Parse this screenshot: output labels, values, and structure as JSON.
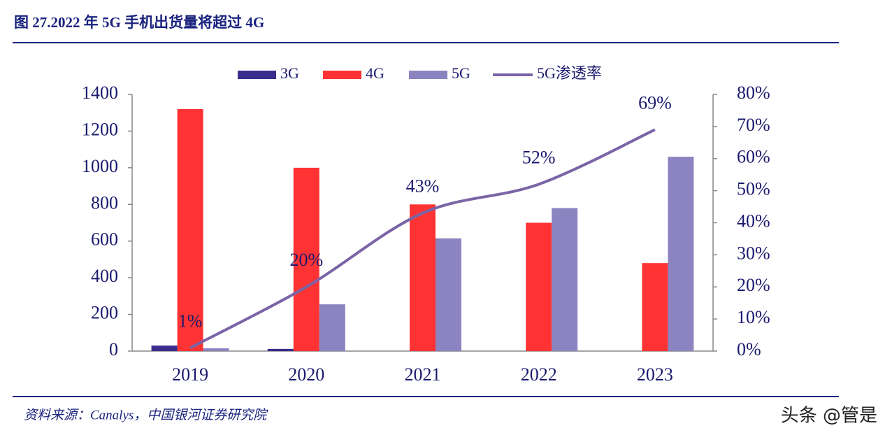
{
  "chart_data": {
    "type": "bar_line",
    "title": "图 27.2022 年 5G 手机出货量将超过 4G",
    "source": "资料来源：Canalys，中国银河证券研究院",
    "watermark": "头条 @管是",
    "categories": [
      "2019",
      "2020",
      "2021",
      "2022",
      "2023"
    ],
    "series": [
      {
        "name": "3G",
        "color": "#3a2d8c",
        "values": [
          30,
          12,
          0,
          0,
          0
        ]
      },
      {
        "name": "4G",
        "color": "#ff3333",
        "values": [
          1320,
          1000,
          800,
          700,
          480
        ]
      },
      {
        "name": "5G",
        "color": "#8b84c0",
        "values": [
          15,
          255,
          615,
          780,
          1060
        ]
      },
      {
        "name": "5G渗透率",
        "color": "#7b64a6",
        "axis": "y2",
        "values": [
          1,
          20,
          43,
          52,
          69
        ],
        "value_labels": [
          "1%",
          "20%",
          "43%",
          "52%",
          "69%"
        ]
      }
    ],
    "ylim": [
      0,
      1400
    ],
    "yticks": [
      0,
      200,
      400,
      600,
      800,
      1000,
      1200,
      1400
    ],
    "y2lim": [
      0,
      80
    ],
    "y2ticks": [
      {
        "value": 0,
        "label": "0%"
      },
      {
        "value": 10,
        "label": "10%"
      },
      {
        "value": 20,
        "label": "20%"
      },
      {
        "value": 30,
        "label": "30%"
      },
      {
        "value": 40,
        "label": "40%"
      },
      {
        "value": 50,
        "label": "50%"
      },
      {
        "value": 60,
        "label": "60%"
      },
      {
        "value": 70,
        "label": "70%"
      },
      {
        "value": 80,
        "label": "80%"
      }
    ],
    "legend": "top"
  }
}
